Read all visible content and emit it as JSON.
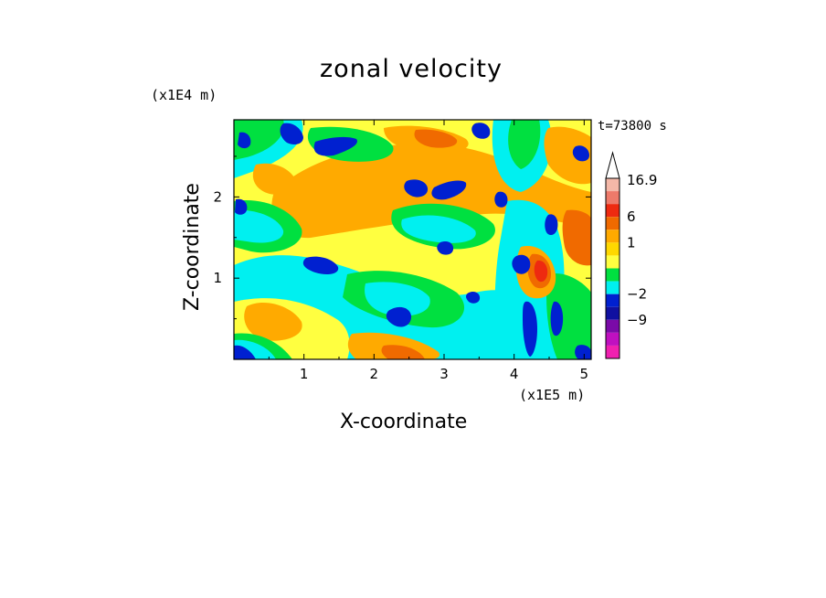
{
  "chart_data": {
    "type": "heatmap",
    "title": "zonal velocity",
    "xlabel": "X-coordinate",
    "ylabel": "Z-coordinate",
    "x_unit": "(x1E5 m)",
    "y_unit": "(x1E4 m)",
    "annotation": "t=73800 s",
    "xlim": [
      0,
      5.1
    ],
    "ylim": [
      0,
      2.95
    ],
    "x_ticks": [
      "1",
      "2",
      "3",
      "4",
      "5"
    ],
    "y_ticks": [
      "1",
      "2"
    ],
    "colorbar": {
      "labels": [
        "16.9",
        "6",
        "1",
        "−2",
        "−9"
      ],
      "levels": [
        {
          "value": 16.9,
          "color": "#f4b8a8"
        },
        {
          "value": 12,
          "color": "#ee7a6a"
        },
        {
          "value": 8,
          "color": "#ee2a10"
        },
        {
          "value": 6,
          "color": "#f06a00"
        },
        {
          "value": 3,
          "color": "#ffaa00"
        },
        {
          "value": 1,
          "color": "#ffd800"
        },
        {
          "value": 0.5,
          "color": "#ffff40"
        },
        {
          "value": 0,
          "color": "#00e040"
        },
        {
          "value": -1,
          "color": "#00f0f0"
        },
        {
          "value": -2,
          "color": "#0020d0"
        },
        {
          "value": -4,
          "color": "#1010a0"
        },
        {
          "value": -9,
          "color": "#7a0aa8"
        },
        {
          "value": -12,
          "color": "#c010c0"
        },
        {
          "value": -15,
          "color": "#f020b0"
        }
      ]
    }
  }
}
